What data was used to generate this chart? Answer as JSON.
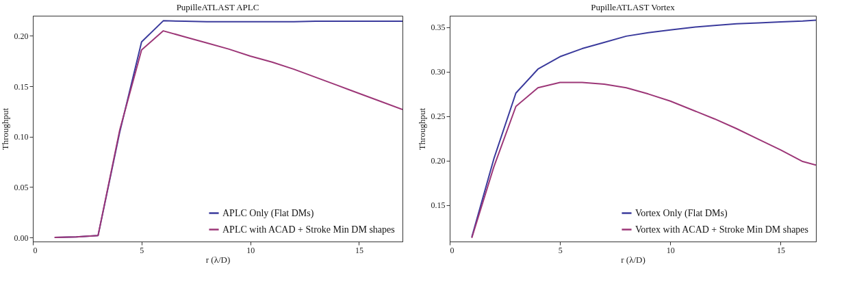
{
  "chart_data": [
    {
      "type": "line",
      "title": "PupilleATLAST APLC",
      "xlabel": "r   (λ/D)",
      "ylabel": "Throughput",
      "x": [
        1,
        2,
        3,
        4,
        5,
        6,
        7,
        8,
        9,
        10,
        11,
        12,
        13,
        14,
        15,
        16,
        17
      ],
      "xlim": [
        0,
        17
      ],
      "xticks": [
        0,
        5,
        10,
        15
      ],
      "ylim": [
        -0.004,
        0.22
      ],
      "yticks": [
        {
          "value": 0,
          "label": "0.00"
        },
        0.05,
        {
          "value": 0.1,
          "label": "0.10"
        },
        0.15,
        {
          "value": 0.2,
          "label": "0.20"
        }
      ],
      "grid": false,
      "legend": "bottom right",
      "marker": "none",
      "line_style": "solid",
      "series": [
        {
          "name": "APLC Only (Flat DMs)",
          "color": "#3a3a9c",
          "values": [
            0,
            0.0005,
            0.002,
            0.105,
            0.194,
            0.215,
            0.2145,
            0.214,
            0.214,
            0.214,
            0.214,
            0.214,
            0.2145,
            0.2145,
            0.2145,
            0.2145,
            0.2145
          ]
        },
        {
          "name": "APLC with ACAD + Stroke Min DM shapes",
          "color": "#9c3677",
          "values": [
            0,
            0.0005,
            0.002,
            0.107,
            0.186,
            0.205,
            0.199,
            0.193,
            0.187,
            0.18,
            0.174,
            0.167,
            0.159,
            0.151,
            0.143,
            0.135,
            0.127
          ]
        }
      ]
    },
    {
      "type": "line",
      "title": "PupilleATLAST Vortex",
      "xlabel": "r   (λ/D)",
      "ylabel": "Throughput",
      "x": [
        1,
        2,
        3,
        4,
        5,
        6,
        7,
        8,
        9,
        10,
        11,
        12,
        13,
        14,
        15,
        16,
        16.6
      ],
      "xlim": [
        0,
        16.6
      ],
      "xticks": [
        0,
        5,
        10,
        15
      ],
      "ylim": [
        0.109,
        0.363
      ],
      "yticks": [
        0.15,
        {
          "value": 0.2,
          "label": "0.20"
        },
        0.25,
        {
          "value": 0.3,
          "label": "0.30"
        },
        0.35
      ],
      "grid": false,
      "legend": "bottom right",
      "marker": "none",
      "line_style": "solid",
      "series": [
        {
          "name": "Vortex Only (Flat DMs)",
          "color": "#3a3a9c",
          "values": [
            0.114,
            0.202,
            0.276,
            0.303,
            0.317,
            0.326,
            0.333,
            0.34,
            0.344,
            0.347,
            0.35,
            0.352,
            0.354,
            0.355,
            0.356,
            0.357,
            0.358
          ]
        },
        {
          "name": "Vortex with ACAD + Stroke Min DM shapes",
          "color": "#9c3677",
          "values": [
            0.113,
            0.193,
            0.261,
            0.282,
            0.288,
            0.288,
            0.286,
            0.282,
            0.275,
            0.267,
            0.257,
            0.247,
            0.236,
            0.224,
            0.212,
            0.199,
            0.195
          ]
        }
      ]
    }
  ]
}
